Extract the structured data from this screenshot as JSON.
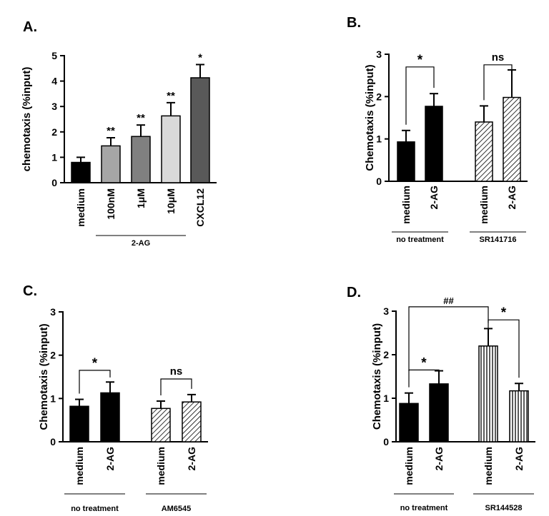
{
  "chart_data": [
    {
      "panel": "A.",
      "type": "bar",
      "ylabel": "chemotaxis (%input)",
      "ylim": [
        0,
        5
      ],
      "yticks": [
        "0",
        "1",
        "2",
        "3",
        "4",
        "5"
      ],
      "categories": [
        "medium",
        "100nM",
        "1μM",
        "10μM",
        "CXCL12"
      ],
      "values": [
        0.8,
        1.45,
        1.82,
        2.63,
        4.13
      ],
      "errors": [
        0.2,
        0.32,
        0.45,
        0.52,
        0.52
      ],
      "fills": [
        "#000000",
        "#a6a6a6",
        "#808080",
        "#d9d9d9",
        "#595959"
      ],
      "significance": [
        "",
        "**",
        "**",
        "**",
        "*"
      ],
      "groups": [
        {
          "label": "2-AG",
          "from": 1,
          "to": 3
        }
      ]
    },
    {
      "panel": "B.",
      "type": "bar",
      "ylabel": "Chemotaxis (%input)",
      "ylim": [
        0,
        3
      ],
      "yticks": [
        "0",
        "1",
        "2",
        "3"
      ],
      "categories": [
        "medium",
        "2-AG",
        "medium",
        "2-AG"
      ],
      "values": [
        0.93,
        1.77,
        1.4,
        1.98
      ],
      "errors": [
        0.27,
        0.3,
        0.38,
        0.65
      ],
      "fills": [
        "solid",
        "solid",
        "diag",
        "diag"
      ],
      "groups": [
        {
          "label": "no treatment",
          "from": 0,
          "to": 1
        },
        {
          "label": "SR141716",
          "from": 2,
          "to": 3
        }
      ],
      "brackets": [
        {
          "from": 0,
          "to": 1,
          "y": 2.7,
          "label": "*"
        },
        {
          "from": 2,
          "to": 3,
          "y": 2.75,
          "label": "ns"
        }
      ]
    },
    {
      "panel": "C.",
      "type": "bar",
      "ylabel": "Chemotaxis (%input)",
      "ylim": [
        0,
        3
      ],
      "yticks": [
        "0",
        "1",
        "2",
        "3"
      ],
      "categories": [
        "medium",
        "2-AG",
        "medium",
        "2-AG"
      ],
      "values": [
        0.82,
        1.13,
        0.77,
        0.92
      ],
      "errors": [
        0.16,
        0.25,
        0.17,
        0.17
      ],
      "fills": [
        "solid",
        "solid",
        "diag",
        "diag"
      ],
      "groups": [
        {
          "label": "no treatment",
          "from": 0,
          "to": 1
        },
        {
          "label": "AM6545",
          "from": 2,
          "to": 3
        }
      ],
      "brackets": [
        {
          "from": 0,
          "to": 1,
          "y": 1.65,
          "label": "*"
        },
        {
          "from": 2,
          "to": 3,
          "y": 1.45,
          "label": "ns"
        }
      ]
    },
    {
      "panel": "D.",
      "type": "bar",
      "ylabel": "Chemotaxis (%input)",
      "ylim": [
        0,
        3
      ],
      "yticks": [
        "0",
        "1",
        "2",
        "3"
      ],
      "categories": [
        "medium",
        "2-AG",
        "medium",
        "2-AG"
      ],
      "values": [
        0.88,
        1.33,
        2.2,
        1.17
      ],
      "errors": [
        0.24,
        0.3,
        0.4,
        0.17
      ],
      "fills": [
        "solid",
        "solid",
        "vert",
        "vert"
      ],
      "groups": [
        {
          "label": "no treatment",
          "from": 0,
          "to": 1
        },
        {
          "label": "SR144528",
          "from": 2,
          "to": 3
        }
      ],
      "brackets": [
        {
          "from": 0,
          "to": 1,
          "y": 1.65,
          "label": "*"
        },
        {
          "from": 2,
          "to": 3,
          "y": 2.8,
          "label": "*"
        },
        {
          "from": 0,
          "to": 2,
          "y": 3.1,
          "label": "##"
        }
      ]
    }
  ]
}
